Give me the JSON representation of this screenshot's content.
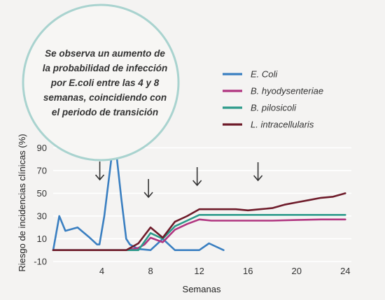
{
  "chart_data": {
    "type": "line",
    "xlabel": "Semanas",
    "ylabel": "Riesgo de incidencias clínicas (%)",
    "xlim": [
      0,
      24.5
    ],
    "ylim": [
      -10,
      97
    ],
    "x_ticks": [
      4,
      8,
      12,
      16,
      20,
      24
    ],
    "y_ticks": [
      -10,
      10,
      30,
      50,
      70,
      90
    ],
    "grid": true,
    "legend_position": "top-right",
    "series": [
      {
        "name": "E. Coli",
        "color": "#3a7fc1",
        "points": [
          [
            0,
            0
          ],
          [
            0.5,
            30
          ],
          [
            1,
            17
          ],
          [
            2,
            20
          ],
          [
            3,
            11
          ],
          [
            3.6,
            5
          ],
          [
            3.8,
            5
          ],
          [
            4.2,
            30
          ],
          [
            4.9,
            91
          ],
          [
            5.2,
            84
          ],
          [
            5.6,
            45
          ],
          [
            6,
            10
          ],
          [
            6.3,
            5
          ],
          [
            7,
            1
          ],
          [
            8,
            0
          ],
          [
            9,
            10
          ],
          [
            10,
            0
          ],
          [
            12,
            0
          ],
          [
            12.8,
            6
          ],
          [
            14,
            0
          ]
        ]
      },
      {
        "name": "B. hyodysenteriae",
        "color": "#b03580",
        "points": [
          [
            0,
            0
          ],
          [
            4,
            0
          ],
          [
            6,
            0
          ],
          [
            7,
            2
          ],
          [
            7.5,
            5
          ],
          [
            8,
            11
          ],
          [
            9,
            7
          ],
          [
            10,
            18
          ],
          [
            11,
            23
          ],
          [
            12,
            27
          ],
          [
            13,
            26
          ],
          [
            14,
            26
          ],
          [
            16,
            26
          ],
          [
            18,
            26
          ],
          [
            20,
            26.5
          ],
          [
            22,
            27
          ],
          [
            24,
            27
          ]
        ]
      },
      {
        "name": "B. pilosicoli",
        "color": "#2c9a8a",
        "points": [
          [
            0,
            0
          ],
          [
            4,
            0
          ],
          [
            6,
            0
          ],
          [
            7,
            0
          ],
          [
            8,
            15
          ],
          [
            9,
            10
          ],
          [
            10,
            21
          ],
          [
            11,
            26
          ],
          [
            12,
            31
          ],
          [
            14,
            31
          ],
          [
            16,
            31
          ],
          [
            18,
            31
          ],
          [
            20,
            31
          ],
          [
            22,
            31
          ],
          [
            24,
            31
          ]
        ]
      },
      {
        "name": "L. intracellularis",
        "color": "#6e1b2a",
        "points": [
          [
            0,
            0
          ],
          [
            4,
            0
          ],
          [
            6,
            0
          ],
          [
            7,
            6
          ],
          [
            8,
            20
          ],
          [
            9,
            11
          ],
          [
            10,
            25
          ],
          [
            11,
            30
          ],
          [
            12,
            36
          ],
          [
            13,
            36
          ],
          [
            14,
            36
          ],
          [
            15,
            36
          ],
          [
            16,
            35
          ],
          [
            17,
            36
          ],
          [
            18,
            37
          ],
          [
            19,
            40
          ],
          [
            20,
            42
          ],
          [
            21,
            44
          ],
          [
            22,
            46
          ],
          [
            23,
            47
          ],
          [
            24,
            50
          ]
        ]
      }
    ],
    "arrows_at_weeks": [
      4,
      8,
      12,
      17
    ],
    "annotation": {
      "lines": [
        "Se observa un aumento de",
        "la probabilidad de infección",
        "por E.coli entre las 4 y 8",
        "semanas, coincidiendo con",
        "el periodo de transición"
      ],
      "circle_color": "#a9d3cf"
    }
  }
}
